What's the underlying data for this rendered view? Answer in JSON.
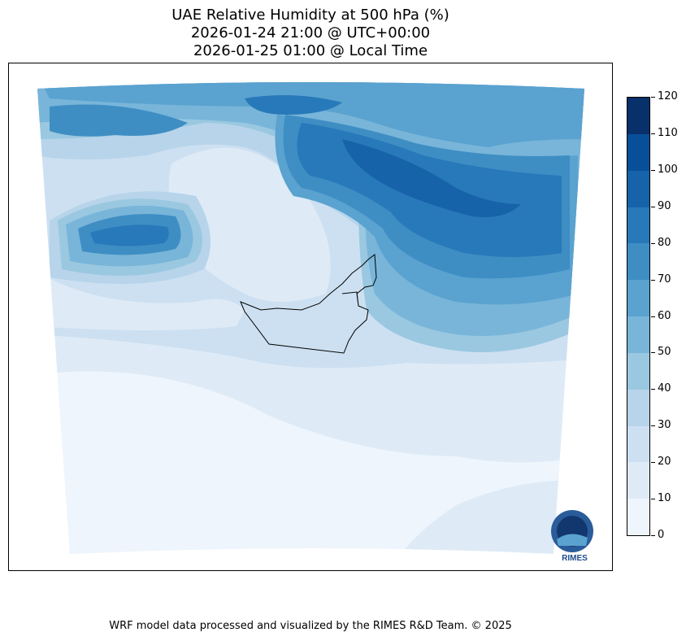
{
  "title": {
    "line1": "UAE Relative Humidity at 500 hPa (%)",
    "line2": "2026-01-24 21:00 @ UTC+00:00",
    "line3": "2026-01-25 01:00 @ Local Time"
  },
  "chart_data": {
    "type": "heatmap",
    "variable": "Relative Humidity at 500 hPa (%)",
    "colorbar": {
      "levels": [
        0,
        10,
        20,
        30,
        40,
        50,
        60,
        70,
        80,
        90,
        100,
        110,
        120
      ],
      "tick_labels": [
        "0",
        "10",
        "20",
        "30",
        "40",
        "50",
        "60",
        "70",
        "80",
        "90",
        "100",
        "110",
        "120"
      ],
      "colors": [
        "#eff5fc",
        "#deebf7",
        "#cde0f1",
        "#b7d4ea",
        "#9ac8e0",
        "#78b5d9",
        "#5aa2cf",
        "#3e8ec4",
        "#2879b9",
        "#1763aa",
        "#084f99",
        "#08306b"
      ]
    },
    "notes": "Humid (60-100%) over north and northeast; dry (0-20%) over south"
  },
  "logo": {
    "text": "RIMES"
  },
  "footer": "WRF model data processed and visualized by the RIMES R&D Team. © 2025"
}
